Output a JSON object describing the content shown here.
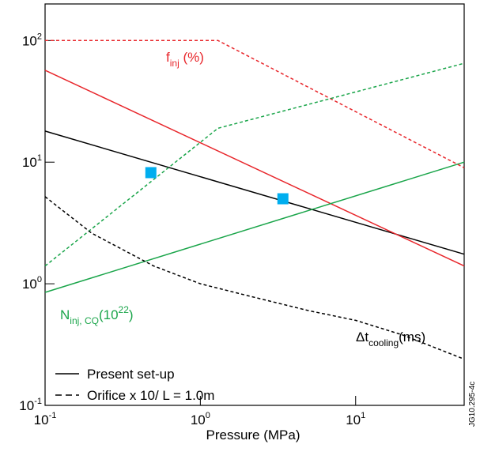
{
  "chart_data": {
    "type": "line",
    "x_label": "Pressure (MPa)",
    "log_x": true,
    "log_y": true,
    "xlim": [
      0.1,
      50
    ],
    "ylim": [
      0.1,
      200
    ],
    "xticks": [
      {
        "value": 0.1,
        "label": "10",
        "exp": "-1"
      },
      {
        "value": 1,
        "label": "10",
        "exp": "0"
      },
      {
        "value": 10,
        "label": "10",
        "exp": "1"
      }
    ],
    "yticks": [
      {
        "value": 0.1,
        "label": "10",
        "exp": "-1"
      },
      {
        "value": 1,
        "label": "10",
        "exp": "0"
      },
      {
        "value": 10,
        "label": "10",
        "exp": "1"
      },
      {
        "value": 100,
        "label": "10",
        "exp": "2"
      }
    ],
    "series": [
      {
        "color": "#000000",
        "dash": false,
        "x": [
          0.1,
          50
        ],
        "values": [
          18,
          1.75
        ]
      },
      {
        "color": "#e8262b",
        "dash": false,
        "x": [
          0.1,
          50
        ],
        "values": [
          57,
          1.4
        ]
      },
      {
        "color": "#1aa54a",
        "dash": false,
        "x": [
          0.1,
          50
        ],
        "values": [
          0.85,
          10
        ]
      },
      {
        "color": "#e8262b",
        "dash": true,
        "x": [
          0.1,
          1.3,
          50
        ],
        "values": [
          100,
          100,
          9
        ]
      },
      {
        "color": "#1aa54a",
        "dash": true,
        "x": [
          0.1,
          1.3,
          50
        ],
        "values": [
          1.4,
          19,
          65
        ]
      },
      {
        "color": "#000000",
        "dash": true,
        "x": [
          0.1,
          0.2,
          0.5,
          1,
          2,
          5,
          10,
          20,
          50
        ],
        "values": [
          5.2,
          2.6,
          1.4,
          1,
          0.8,
          0.6,
          0.5,
          0.38,
          0.24
        ]
      },
      {
        "color": "#00aeef",
        "marker": "square",
        "x": [
          0.48,
          3.4
        ],
        "values": [
          8.2,
          5.0
        ]
      }
    ],
    "annotations": [
      {
        "color": "#e8262b",
        "text": "f",
        "sub": "inj",
        "rest": " (%)"
      },
      {
        "color": "#1aa54a",
        "text": "N",
        "sub": "inj, CQ",
        "rest": "(10",
        "sup": "22",
        "tail": ")"
      },
      {
        "color": "#000000",
        "text": "Δt",
        "sub": "cooling",
        "rest": "(ms)"
      }
    ],
    "legend": [
      {
        "label": "Present set-up",
        "dash": false
      },
      {
        "label": "Orifice x 10/ L = 1.0m",
        "dash": true
      }
    ],
    "legend_corner": "lower left",
    "figure_id": "JG10.295-4c"
  }
}
